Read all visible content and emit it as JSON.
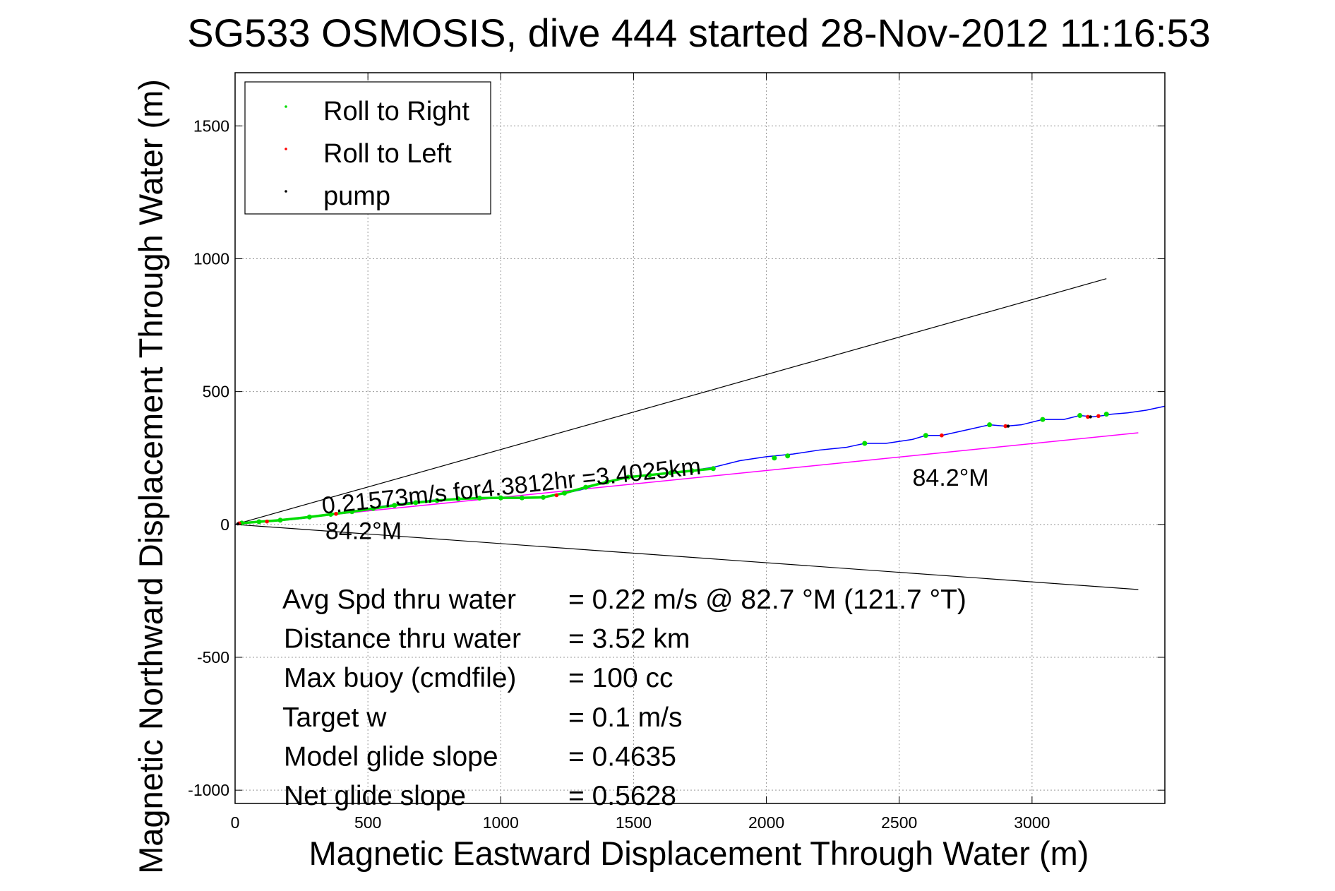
{
  "chart_data": {
    "type": "line",
    "title": "SG533 OSMOSIS, dive 444 started 28-Nov-2012 11:16:53",
    "xlabel": "Magnetic Eastward Displacement Through Water (m)",
    "ylabel": "Magnetic Northward Displacement Through Water (m)",
    "xlim": [
      0,
      3500
    ],
    "ylim": [
      -1050,
      1700
    ],
    "xticks": [
      0,
      500,
      1000,
      1500,
      2000,
      2500,
      3000
    ],
    "yticks": [
      -1000,
      -500,
      0,
      500,
      1000,
      1500
    ],
    "xtick_labels": [
      "0",
      "500",
      "1000",
      "1500",
      "2000",
      "2500",
      "3000"
    ],
    "ytick_labels": [
      "-1000",
      "-500",
      "0",
      "500",
      "1000",
      "1500"
    ],
    "grid": true,
    "legend_position": "top-left",
    "legend": [
      {
        "name": "Roll to Right",
        "color": "#00dd00"
      },
      {
        "name": "Roll to Left",
        "color": "#ff0000"
      },
      {
        "name": "pump",
        "color": "#000000"
      }
    ],
    "colors": {
      "track": "#0000ff",
      "roll_right": "#00dd00",
      "roll_left": "#ff0000",
      "pump": "#000000",
      "heading_line": "#ff00ff",
      "cone": "#000000",
      "grid": "#999999"
    },
    "track": {
      "x": [
        0,
        60,
        150,
        250,
        350,
        450,
        550,
        650,
        750,
        850,
        950,
        1050,
        1150,
        1200,
        1300,
        1400,
        1500,
        1600,
        1700,
        1800,
        1900,
        2000,
        2100,
        2200,
        2300,
        2370,
        2450,
        2550,
        2600,
        2660,
        2750,
        2840,
        2900,
        2960,
        3040,
        3120,
        3180,
        3230,
        3270,
        3300,
        3360,
        3430,
        3500
      ],
      "y": [
        0,
        8,
        12,
        22,
        35,
        50,
        68,
        82,
        92,
        98,
        100,
        100,
        100,
        108,
        130,
        160,
        180,
        190,
        200,
        215,
        240,
        255,
        265,
        280,
        290,
        305,
        305,
        320,
        335,
        335,
        355,
        375,
        370,
        375,
        395,
        395,
        410,
        405,
        410,
        415,
        420,
        430,
        445
      ]
    },
    "roll_right_points": {
      "x": [
        25,
        90,
        170,
        280,
        360,
        440,
        520,
        600,
        680,
        760,
        840,
        920,
        1000,
        1080,
        1160,
        1240,
        1320,
        1400,
        1480,
        1560,
        1640,
        1720,
        1800,
        2030,
        2080,
        2370,
        2600,
        2840,
        3040,
        3180,
        3280
      ],
      "y": [
        5,
        10,
        16,
        28,
        38,
        48,
        60,
        72,
        82,
        90,
        96,
        99,
        100,
        100,
        102,
        118,
        140,
        160,
        178,
        186,
        194,
        202,
        210,
        250,
        258,
        305,
        335,
        375,
        395,
        410,
        415
      ]
    },
    "roll_left_points": {
      "x": [
        15,
        120,
        380,
        1210,
        2660,
        2900,
        3210,
        3250
      ],
      "y": [
        4,
        11,
        40,
        110,
        335,
        370,
        405,
        408
      ]
    },
    "pump_points": {
      "x": [
        10,
        2910,
        3220
      ],
      "y": [
        2,
        370,
        405
      ]
    },
    "heading_line": {
      "x": [
        0,
        3400
      ],
      "y": [
        0,
        345
      ]
    },
    "cone_lines": [
      {
        "x": [
          0,
          3280
        ],
        "y": [
          0,
          925
        ]
      },
      {
        "x": [
          0,
          3400
        ],
        "y": [
          0,
          -245
        ]
      }
    ],
    "annotations": [
      {
        "text": "0.21573m/s for4.3812hr =3.4025km",
        "x": 330,
        "y": 40,
        "rotate": -6
      },
      {
        "text": "84.2°M",
        "x": 340,
        "y": -55,
        "rotate": 0
      },
      {
        "text": "84.2°M",
        "x": 2550,
        "y": 145,
        "rotate": 0
      }
    ],
    "stats": [
      {
        "label": "Avg Spd thru water",
        "value": "=  0.22 m/s @  82.7 °M (121.7 °T)"
      },
      {
        "label": "Distance thru water",
        "value": "=  3.52 km"
      },
      {
        "label": "Max buoy (cmdfile)",
        "value": "= 100 cc"
      },
      {
        "label": "Target w",
        "value": "= 0.1 m/s"
      },
      {
        "label": "Model glide slope",
        "value": "= 0.4635"
      },
      {
        "label": "Net glide slope",
        "value": "= 0.5628"
      }
    ]
  }
}
